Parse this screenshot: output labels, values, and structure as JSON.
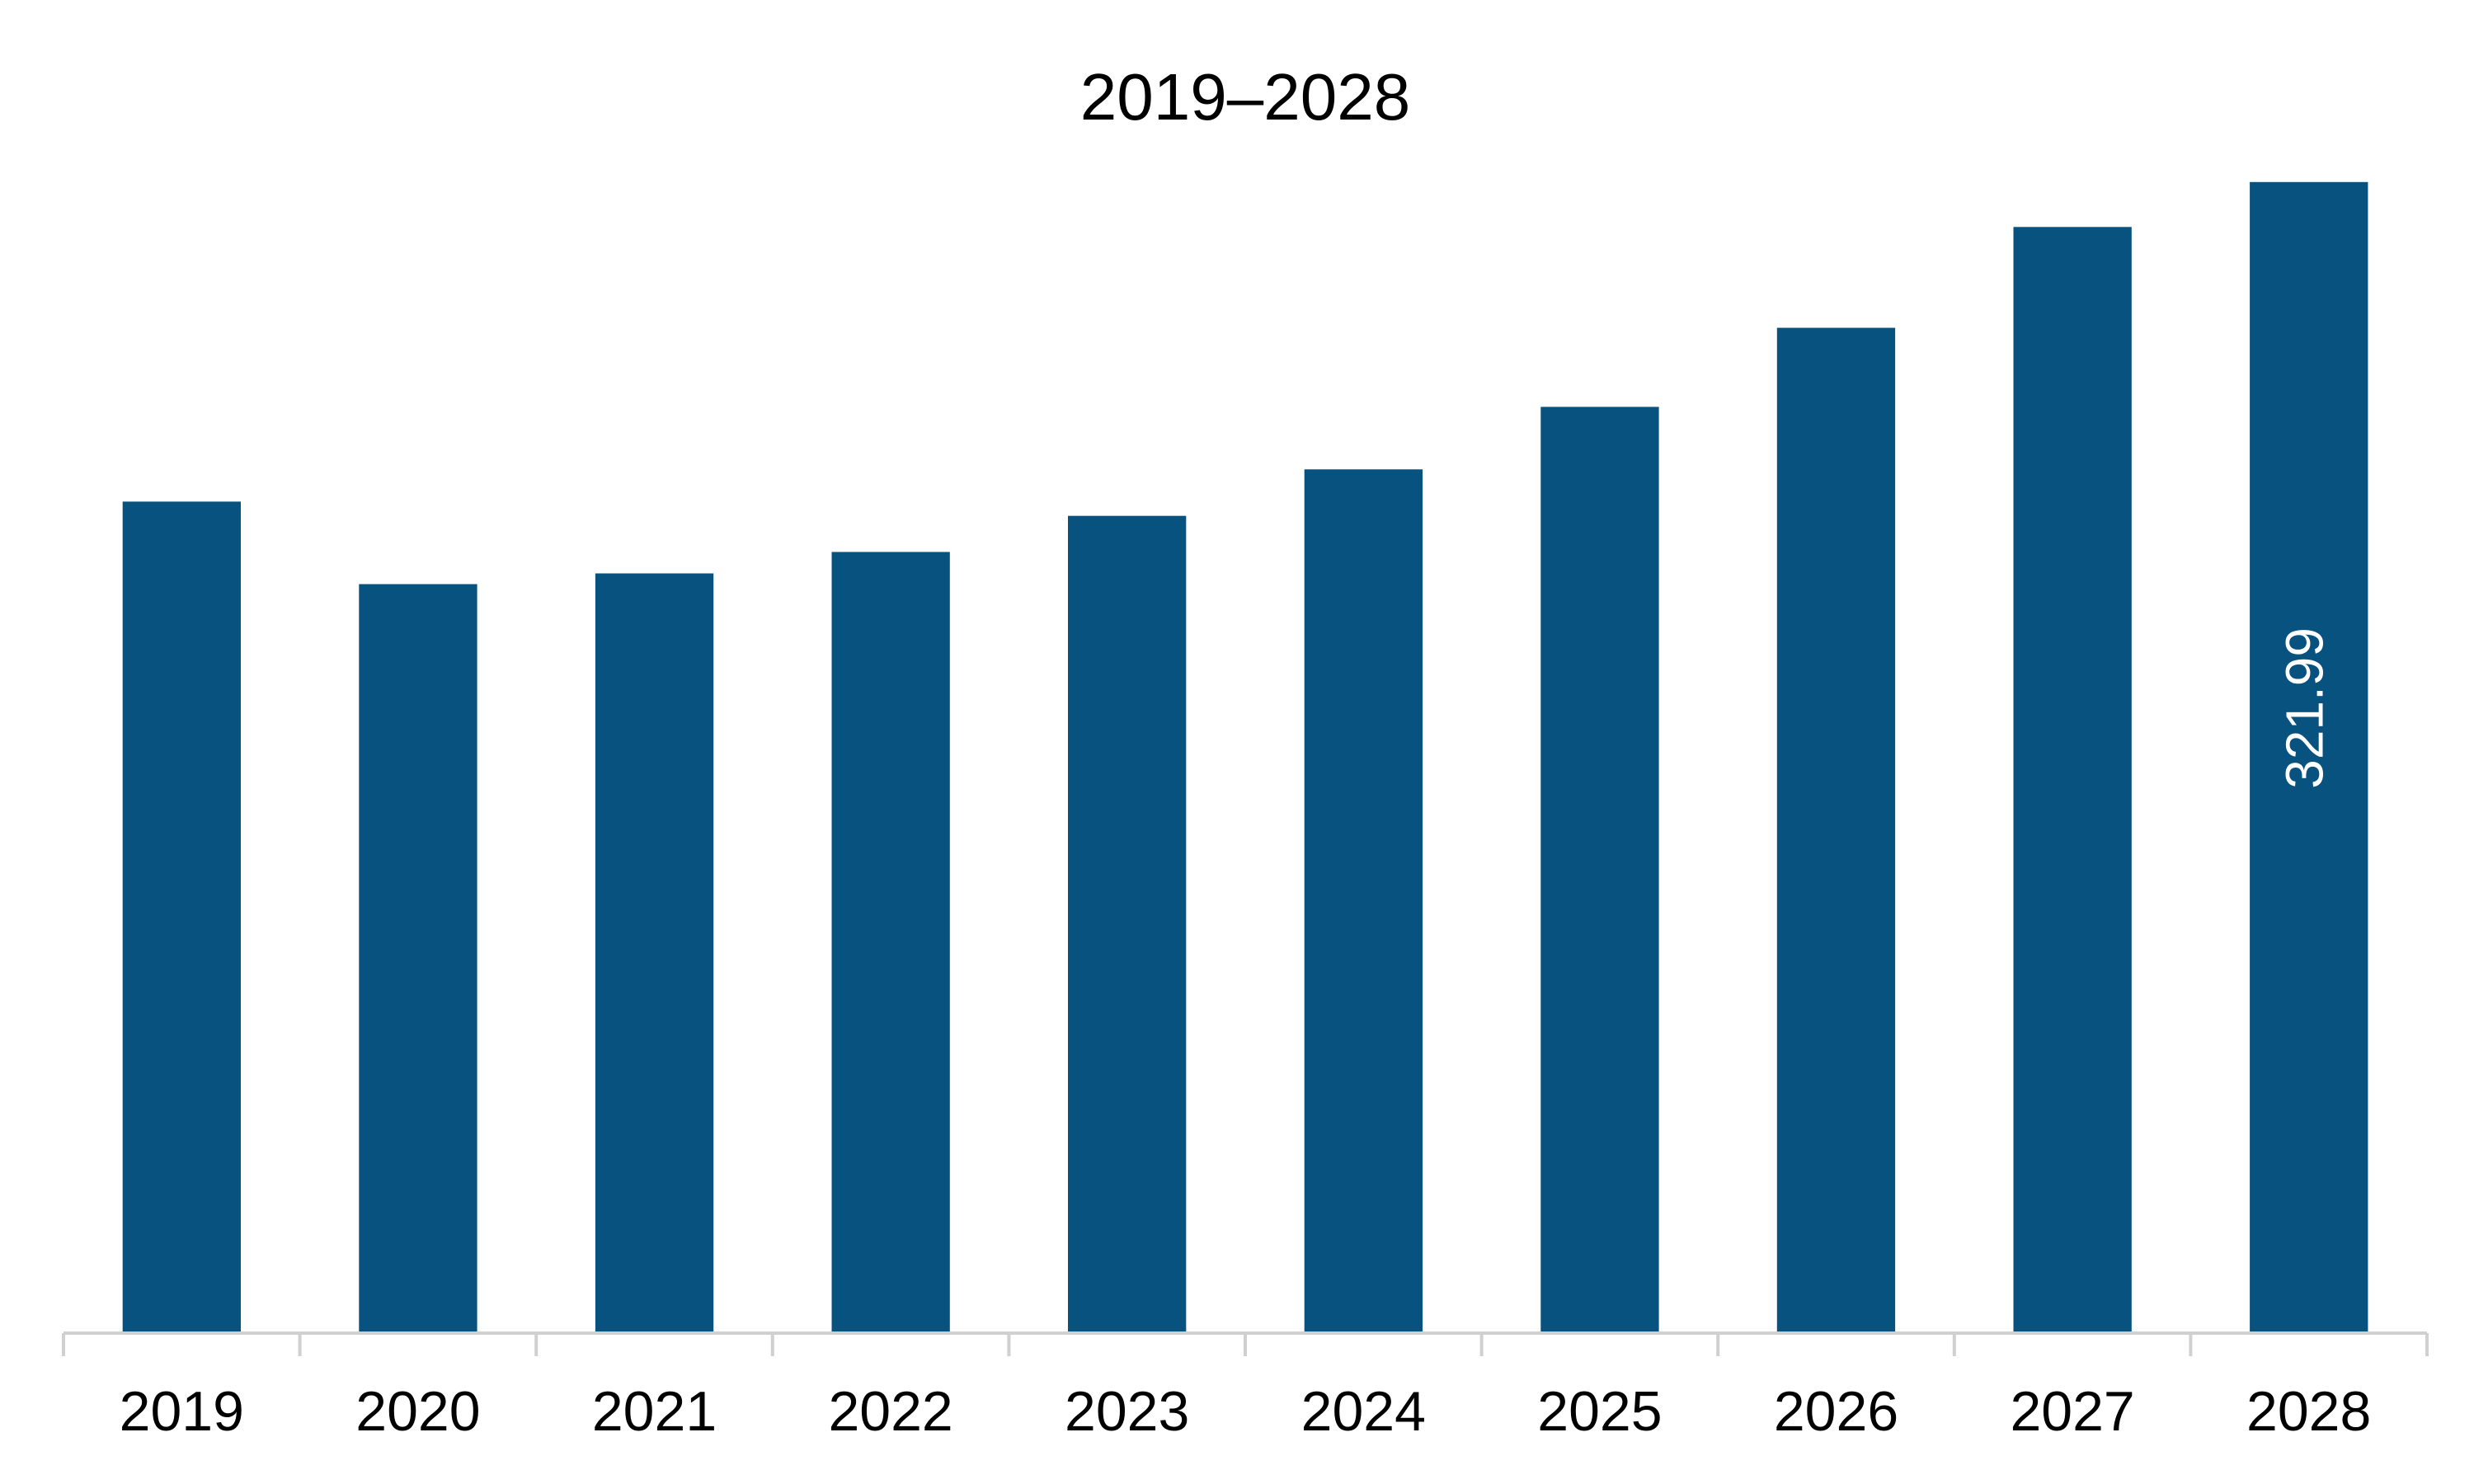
{
  "chart_data": {
    "type": "bar",
    "title": "2019–2028",
    "xlabel": "",
    "ylabel": "",
    "categories": [
      "2019",
      "2020",
      "2021",
      "2022",
      "2023",
      "2024",
      "2025",
      "2026",
      "2027",
      "2028"
    ],
    "values": [
      232.6,
      209.5,
      212.5,
      218.5,
      228.6,
      241.6,
      259.1,
      281.2,
      309.4,
      321.99
    ],
    "data_labels": [
      "",
      "",
      "",
      "",
      "",
      "",
      "",
      "",
      "",
      "321.99"
    ],
    "ylim": [
      0,
      336
    ],
    "grid": false,
    "legend": "none",
    "colors": {
      "bar": "#07527F",
      "axis": "#D0D0D0",
      "data_label": "#FFFFFF"
    }
  }
}
